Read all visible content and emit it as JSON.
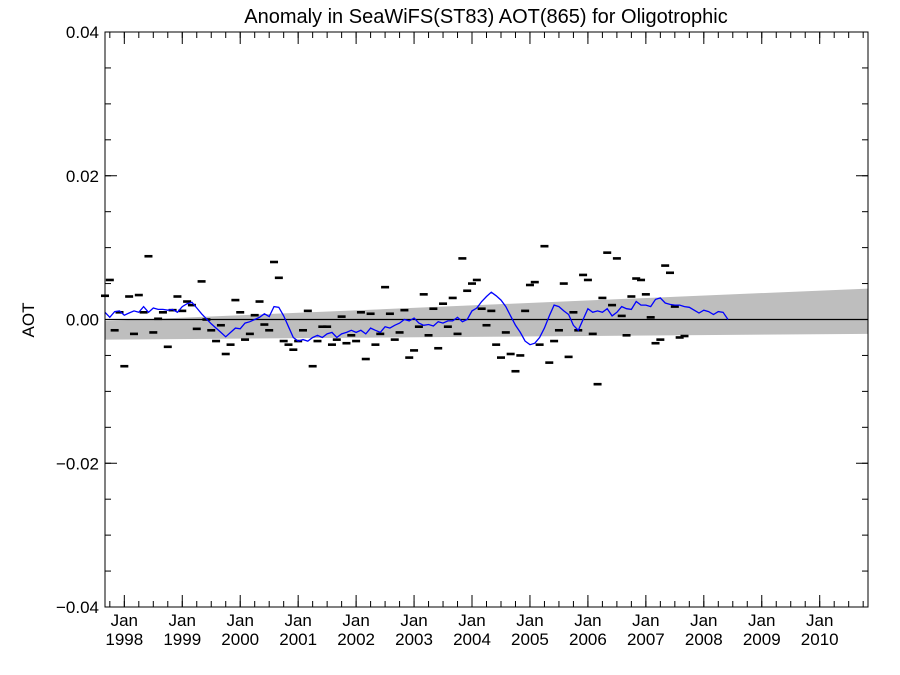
{
  "chart_data": {
    "type": "scatter",
    "title": "Anomaly in SeaWiFS(ST83) AOT(865) for Oligotrophic",
    "xlabel": "",
    "ylabel": "AOT",
    "xlim": [
      "1997-09",
      "2010-11"
    ],
    "ylim": [
      -0.04,
      0.04
    ],
    "yticks": [
      -0.04,
      -0.02,
      0.0,
      0.02,
      0.04
    ],
    "ytick_labels": [
      "−0.04",
      "−0.02",
      "0.00",
      "0.02",
      "0.04"
    ],
    "xticks": [
      {
        "date": "1998-01",
        "month": "Jan",
        "year": "1998"
      },
      {
        "date": "1999-01",
        "month": "Jan",
        "year": "1999"
      },
      {
        "date": "2000-01",
        "month": "Jan",
        "year": "2000"
      },
      {
        "date": "2001-01",
        "month": "Jan",
        "year": "2001"
      },
      {
        "date": "2002-01",
        "month": "Jan",
        "year": "2002"
      },
      {
        "date": "2003-01",
        "month": "Jan",
        "year": "2003"
      },
      {
        "date": "2004-01",
        "month": "Jan",
        "year": "2004"
      },
      {
        "date": "2005-01",
        "month": "Jan",
        "year": "2005"
      },
      {
        "date": "2006-01",
        "month": "Jan",
        "year": "2006"
      },
      {
        "date": "2007-01",
        "month": "Jan",
        "year": "2007"
      },
      {
        "date": "2008-01",
        "month": "Jan",
        "year": "2008"
      },
      {
        "date": "2009-01",
        "month": "Jan",
        "year": "2009"
      },
      {
        "date": "2010-01",
        "month": "Jan",
        "year": "2010"
      }
    ],
    "grid": false,
    "zero_line": 0.0,
    "trend_band": {
      "color": "#bebebe",
      "start": {
        "date": "1997-09",
        "low": -0.0028,
        "high": -0.0002
      },
      "end": {
        "date": "2010-11",
        "low": -0.002,
        "high": 0.0043
      }
    },
    "series": [
      {
        "style": "markers",
        "color": "#000000",
        "points": [
          [
            "1997-09",
            0.0033
          ],
          [
            "1997-10",
            0.0055
          ],
          [
            "1997-11",
            -0.0015
          ],
          [
            "1997-12",
            0.001
          ],
          [
            "1998-01",
            -0.0065
          ],
          [
            "1998-02",
            0.0032
          ],
          [
            "1998-03",
            -0.002
          ],
          [
            "1998-04",
            0.0034
          ],
          [
            "1998-05",
            0.001
          ],
          [
            "1998-06",
            0.0088
          ],
          [
            "1998-07",
            -0.0018
          ],
          [
            "1998-08",
            0.0001
          ],
          [
            "1998-09",
            0.001
          ],
          [
            "1998-10",
            -0.0038
          ],
          [
            "1998-11",
            0.0013
          ],
          [
            "1998-12",
            0.0032
          ],
          [
            "1999-01",
            0.0012
          ],
          [
            "1999-02",
            0.0025
          ],
          [
            "1999-03",
            0.002
          ],
          [
            "1999-04",
            -0.0013
          ],
          [
            "1999-05",
            0.0053
          ],
          [
            "1999-06",
            0.0
          ],
          [
            "1999-07",
            -0.0015
          ],
          [
            "1999-08",
            -0.003
          ],
          [
            "1999-09",
            -0.0008
          ],
          [
            "1999-10",
            -0.0048
          ],
          [
            "1999-11",
            -0.0035
          ],
          [
            "1999-12",
            0.0027
          ],
          [
            "2000-01",
            0.001
          ],
          [
            "2000-02",
            -0.0028
          ],
          [
            "2000-03",
            -0.002
          ],
          [
            "2000-04",
            0.0006
          ],
          [
            "2000-05",
            0.0025
          ],
          [
            "2000-06",
            -0.0007
          ],
          [
            "2000-07",
            -0.0015
          ],
          [
            "2000-08",
            0.008
          ],
          [
            "2000-09",
            0.0058
          ],
          [
            "2000-10",
            -0.003
          ],
          [
            "2000-11",
            -0.0035
          ],
          [
            "2000-12",
            -0.0042
          ],
          [
            "2001-01",
            -0.003
          ],
          [
            "2001-02",
            -0.0015
          ],
          [
            "2001-03",
            0.0012
          ],
          [
            "2001-04",
            -0.0065
          ],
          [
            "2001-05",
            -0.003
          ],
          [
            "2001-06",
            -0.001
          ],
          [
            "2001-07",
            -0.001
          ],
          [
            "2001-08",
            -0.0035
          ],
          [
            "2001-09",
            -0.0028
          ],
          [
            "2001-10",
            0.0004
          ],
          [
            "2001-11",
            -0.0033
          ],
          [
            "2001-12",
            -0.0022
          ],
          [
            "2002-01",
            -0.003
          ],
          [
            "2002-02",
            0.001
          ],
          [
            "2002-03",
            -0.0055
          ],
          [
            "2002-04",
            0.0008
          ],
          [
            "2002-05",
            -0.0035
          ],
          [
            "2002-06",
            -0.002
          ],
          [
            "2002-07",
            0.0045
          ],
          [
            "2002-08",
            0.0008
          ],
          [
            "2002-09",
            -0.0028
          ],
          [
            "2002-10",
            -0.0018
          ],
          [
            "2002-11",
            0.0013
          ],
          [
            "2002-12",
            -0.0053
          ],
          [
            "2003-01",
            -0.0043
          ],
          [
            "2003-02",
            -0.001
          ],
          [
            "2003-03",
            0.0035
          ],
          [
            "2003-04",
            -0.0022
          ],
          [
            "2003-05",
            0.0015
          ],
          [
            "2003-06",
            -0.004
          ],
          [
            "2003-07",
            0.0022
          ],
          [
            "2003-08",
            -0.001
          ],
          [
            "2003-09",
            0.003
          ],
          [
            "2003-10",
            -0.002
          ],
          [
            "2003-11",
            0.0085
          ],
          [
            "2003-12",
            0.004
          ],
          [
            "2004-01",
            0.005
          ],
          [
            "2004-02",
            0.0055
          ],
          [
            "2004-03",
            0.0015
          ],
          [
            "2004-04",
            -0.0008
          ],
          [
            "2004-05",
            0.0012
          ],
          [
            "2004-06",
            -0.0035
          ],
          [
            "2004-07",
            -0.0053
          ],
          [
            "2004-08",
            -0.0018
          ],
          [
            "2004-09",
            -0.0048
          ],
          [
            "2004-10",
            -0.0072
          ],
          [
            "2004-11",
            -0.005
          ],
          [
            "2004-12",
            0.0012
          ],
          [
            "2005-01",
            0.0048
          ],
          [
            "2005-02",
            0.0052
          ],
          [
            "2005-03",
            -0.0035
          ],
          [
            "2005-04",
            0.0102
          ],
          [
            "2005-05",
            -0.006
          ],
          [
            "2005-06",
            -0.003
          ],
          [
            "2005-07",
            -0.0015
          ],
          [
            "2005-08",
            0.005
          ],
          [
            "2005-09",
            -0.0052
          ],
          [
            "2005-10",
            0.001
          ],
          [
            "2005-11",
            -0.0015
          ],
          [
            "2005-12",
            0.0062
          ],
          [
            "2006-01",
            0.0055
          ],
          [
            "2006-02",
            -0.002
          ],
          [
            "2006-03",
            -0.009
          ],
          [
            "2006-04",
            0.003
          ],
          [
            "2006-05",
            0.0093
          ],
          [
            "2006-06",
            0.002
          ],
          [
            "2006-07",
            0.0085
          ],
          [
            "2006-08",
            0.0005
          ],
          [
            "2006-09",
            -0.0022
          ],
          [
            "2006-10",
            0.0032
          ],
          [
            "2006-11",
            0.0057
          ],
          [
            "2006-12",
            0.0055
          ],
          [
            "2007-01",
            0.0035
          ],
          [
            "2007-02",
            0.0003
          ],
          [
            "2007-03",
            -0.0033
          ],
          [
            "2007-04",
            -0.0028
          ],
          [
            "2007-05",
            0.0075
          ],
          [
            "2007-06",
            0.0065
          ],
          [
            "2007-07",
            0.0018
          ],
          [
            "2007-08",
            -0.0025
          ],
          [
            "2007-09",
            -0.0023
          ]
        ]
      },
      {
        "style": "line",
        "color": "#0000ff",
        "points": [
          [
            "1997-09",
            0.001
          ],
          [
            "1997-10",
            0.0003
          ],
          [
            "1997-11",
            0.0011
          ],
          [
            "1997-12",
            0.0012
          ],
          [
            "1998-01",
            0.0006
          ],
          [
            "1998-02",
            0.0009
          ],
          [
            "1998-03",
            0.0012
          ],
          [
            "1998-04",
            0.001
          ],
          [
            "1998-05",
            0.0018
          ],
          [
            "1998-06",
            0.001
          ],
          [
            "1998-07",
            0.0016
          ],
          [
            "1998-08",
            0.0014
          ],
          [
            "1998-09",
            0.0014
          ],
          [
            "1998-10",
            0.0013
          ],
          [
            "1998-11",
            0.0014
          ],
          [
            "1998-12",
            0.001
          ],
          [
            "1999-01",
            0.0018
          ],
          [
            "1999-02",
            0.0022
          ],
          [
            "1999-03",
            0.0024
          ],
          [
            "1999-04",
            0.0016
          ],
          [
            "1999-05",
            0.0008
          ],
          [
            "1999-06",
            0.0001
          ],
          [
            "1999-07",
            -0.0006
          ],
          [
            "1999-08",
            -0.0012
          ],
          [
            "1999-09",
            -0.0018
          ],
          [
            "1999-10",
            -0.0024
          ],
          [
            "1999-11",
            -0.0018
          ],
          [
            "1999-12",
            -0.0012
          ],
          [
            "2000-01",
            -0.0013
          ],
          [
            "2000-02",
            -0.0005
          ],
          [
            "2000-03",
            -0.0003
          ],
          [
            "2000-04",
            0.0
          ],
          [
            "2000-05",
            0.0003
          ],
          [
            "2000-06",
            0.0008
          ],
          [
            "2000-07",
            0.0004
          ],
          [
            "2000-08",
            0.0018
          ],
          [
            "2000-09",
            0.0017
          ],
          [
            "2000-10",
            0.0005
          ],
          [
            "2000-11",
            -0.001
          ],
          [
            "2000-12",
            -0.0025
          ],
          [
            "2001-01",
            -0.003
          ],
          [
            "2001-02",
            -0.0028
          ],
          [
            "2001-03",
            -0.003
          ],
          [
            "2001-04",
            -0.0025
          ],
          [
            "2001-05",
            -0.0022
          ],
          [
            "2001-06",
            -0.0025
          ],
          [
            "2001-07",
            -0.002
          ],
          [
            "2001-08",
            -0.0018
          ],
          [
            "2001-09",
            -0.0025
          ],
          [
            "2001-10",
            -0.002
          ],
          [
            "2001-11",
            -0.0018
          ],
          [
            "2001-12",
            -0.0015
          ],
          [
            "2002-01",
            -0.0018
          ],
          [
            "2002-02",
            -0.0015
          ],
          [
            "2002-03",
            -0.002
          ],
          [
            "2002-04",
            -0.0012
          ],
          [
            "2002-05",
            -0.0015
          ],
          [
            "2002-06",
            -0.0018
          ],
          [
            "2002-07",
            -0.001
          ],
          [
            "2002-08",
            -0.0012
          ],
          [
            "2002-09",
            -0.0008
          ],
          [
            "2002-10",
            -0.0005
          ],
          [
            "2002-11",
            0.0
          ],
          [
            "2002-12",
            -0.0002
          ],
          [
            "2003-01",
            0.0002
          ],
          [
            "2003-02",
            -0.0005
          ],
          [
            "2003-03",
            -0.0008
          ],
          [
            "2003-04",
            -0.0007
          ],
          [
            "2003-05",
            -0.0009
          ],
          [
            "2003-06",
            -0.0003
          ],
          [
            "2003-07",
            -0.0005
          ],
          [
            "2003-08",
            -0.0002
          ],
          [
            "2003-09",
            -0.0002
          ],
          [
            "2003-10",
            0.0003
          ],
          [
            "2003-11",
            -0.0003
          ],
          [
            "2003-12",
            0.0
          ],
          [
            "2004-01",
            0.0012
          ],
          [
            "2004-02",
            0.0016
          ],
          [
            "2004-03",
            0.0025
          ],
          [
            "2004-04",
            0.0032
          ],
          [
            "2004-05",
            0.0038
          ],
          [
            "2004-06",
            0.0033
          ],
          [
            "2004-07",
            0.0027
          ],
          [
            "2004-08",
            0.0018
          ],
          [
            "2004-09",
            0.0005
          ],
          [
            "2004-10",
            -0.0008
          ],
          [
            "2004-11",
            -0.0018
          ],
          [
            "2004-12",
            -0.003
          ],
          [
            "2005-01",
            -0.0035
          ],
          [
            "2005-02",
            -0.0033
          ],
          [
            "2005-03",
            -0.0025
          ],
          [
            "2005-04",
            -0.0012
          ],
          [
            "2005-05",
            0.0005
          ],
          [
            "2005-06",
            0.002
          ],
          [
            "2005-07",
            0.0018
          ],
          [
            "2005-08",
            0.0012
          ],
          [
            "2005-09",
            0.0007
          ],
          [
            "2005-10",
            -0.0008
          ],
          [
            "2005-11",
            -0.0015
          ],
          [
            "2005-12",
            0.0
          ],
          [
            "2006-01",
            0.0015
          ],
          [
            "2006-02",
            0.001
          ],
          [
            "2006-03",
            0.0012
          ],
          [
            "2006-04",
            0.001
          ],
          [
            "2006-05",
            0.0015
          ],
          [
            "2006-06",
            0.0005
          ],
          [
            "2006-07",
            0.001
          ],
          [
            "2006-08",
            0.0018
          ],
          [
            "2006-09",
            0.0015
          ],
          [
            "2006-10",
            0.0014
          ],
          [
            "2006-11",
            0.0025
          ],
          [
            "2006-12",
            0.002
          ],
          [
            "2007-01",
            0.002
          ],
          [
            "2007-02",
            0.0018
          ],
          [
            "2007-03",
            0.0028
          ],
          [
            "2007-04",
            0.003
          ],
          [
            "2007-05",
            0.0023
          ],
          [
            "2007-06",
            0.0021
          ],
          [
            "2007-07",
            0.002
          ],
          [
            "2007-08",
            0.002
          ],
          [
            "2007-09",
            0.0018
          ],
          [
            "2007-10",
            0.0017
          ],
          [
            "2007-11",
            0.0013
          ],
          [
            "2007-12",
            0.0009
          ],
          [
            "2008-01",
            0.0013
          ],
          [
            "2008-02",
            0.0011
          ],
          [
            "2008-03",
            0.0007
          ],
          [
            "2008-04",
            0.0011
          ],
          [
            "2008-05",
            0.001
          ],
          [
            "2008-06",
            0.0
          ]
        ]
      }
    ]
  }
}
